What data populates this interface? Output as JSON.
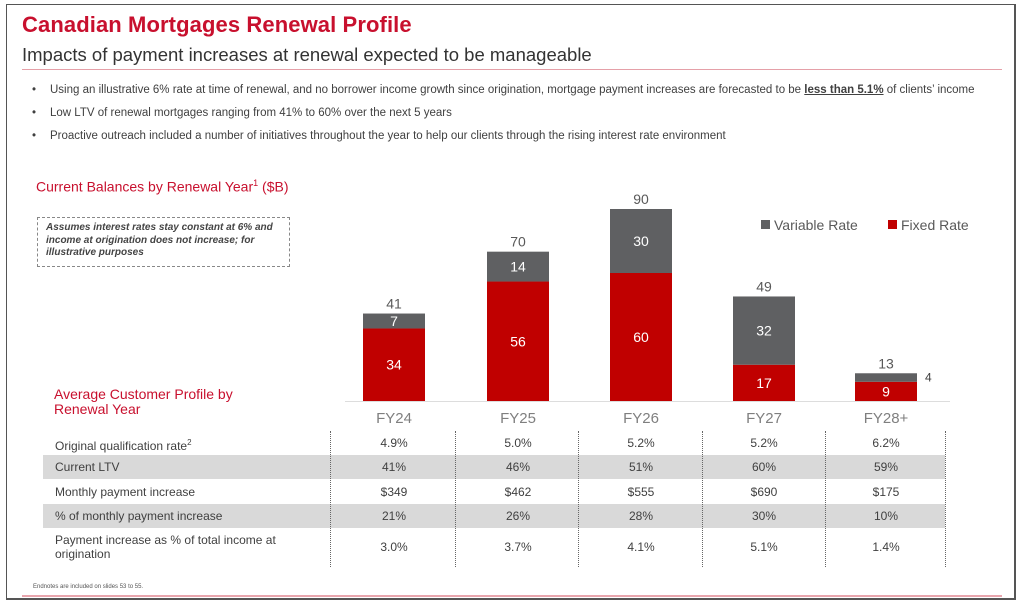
{
  "header": {
    "title": "Canadian Mortgages Renewal Profile",
    "subtitle": "Impacts of payment increases at renewal expected to be manageable"
  },
  "bullets": [
    {
      "pre": "Using an illustrative 6% rate at time of renewal, and no borrower income growth since origination, mortgage payment increases are forecasted to be ",
      "emph": "less than 5.1%",
      "post": " of clients’ income"
    },
    {
      "pre": "Low LTV of renewal mortgages ranging from 41% to 60% over the next 5 years",
      "emph": "",
      "post": ""
    },
    {
      "pre": "Proactive outreach included a number of initiatives throughout the year to help our clients through the rising interest rate environment",
      "emph": "",
      "post": ""
    }
  ],
  "bullet_glyph": "•",
  "chart_note": "Assumes interest rates stay constant at 6% and income at origination does not increase; for illustrative purposes",
  "colors": {
    "accent": "#c8102e",
    "fixed": "#c00000",
    "variable": "#5f6062",
    "shade": "#d9d9d9"
  },
  "chart_data": {
    "type": "bar",
    "stacked": true,
    "title": "Current Balances by Renewal Year",
    "title_sup": "1",
    "title_unit": "($B)",
    "categories": [
      "FY24",
      "FY25",
      "FY26",
      "FY27",
      "FY28+"
    ],
    "series": [
      {
        "name": "Fixed Rate",
        "values": [
          34,
          56,
          60,
          17,
          9
        ]
      },
      {
        "name": "Variable Rate",
        "values": [
          7,
          14,
          30,
          32,
          4
        ]
      }
    ],
    "totals": [
      41,
      70,
      90,
      49,
      13
    ],
    "legend": [
      "Variable Rate",
      "Fixed Rate"
    ],
    "legend_position": "top-right",
    "ylim": [
      0,
      90
    ],
    "grid": false,
    "xlabel": "",
    "ylabel": ""
  },
  "profile": {
    "title": "Average Customer Profile by Renewal Year",
    "rows": [
      {
        "label": "Original qualification rate",
        "sup": "2",
        "values": [
          "4.9%",
          "5.0%",
          "5.2%",
          "5.2%",
          "6.2%"
        ],
        "shaded": false
      },
      {
        "label": "Current LTV",
        "sup": "",
        "values": [
          "41%",
          "46%",
          "51%",
          "60%",
          "59%"
        ],
        "shaded": true
      },
      {
        "label": "Monthly payment increase",
        "sup": "",
        "values": [
          "$349",
          "$462",
          "$555",
          "$690",
          "$175"
        ],
        "shaded": false
      },
      {
        "label": "% of monthly payment increase",
        "sup": "",
        "values": [
          "21%",
          "26%",
          "28%",
          "30%",
          "10%"
        ],
        "shaded": true
      },
      {
        "label": "Payment increase as % of total income at origination",
        "sup": "",
        "values": [
          "3.0%",
          "3.7%",
          "4.1%",
          "5.1%",
          "1.4%"
        ],
        "shaded": false
      }
    ]
  },
  "footnote": "Endnotes are included on slides 53 to 55."
}
